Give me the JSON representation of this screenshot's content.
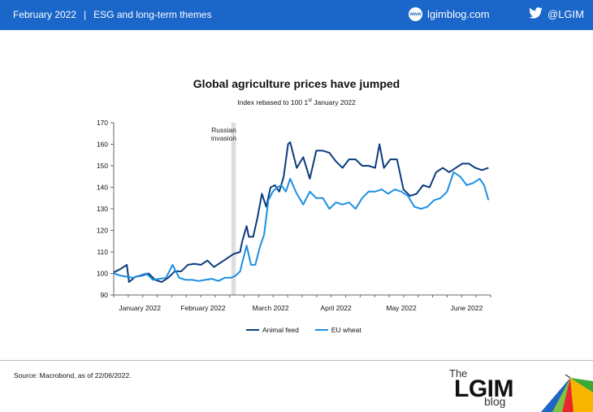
{
  "header": {
    "date": "February 2022",
    "separator": "|",
    "section": "ESG and long-term themes",
    "website": "lgimblog.com",
    "globe_badge": "www",
    "twitter": "@LGIM",
    "background": "#1a66c9"
  },
  "chart_data": {
    "type": "line",
    "title": "Global agriculture prices have jumped",
    "subtitle_prefix": "Index rebased to 100 1",
    "subtitle_sup": "st",
    "subtitle_suffix": " January 2022",
    "ylim": [
      90,
      170
    ],
    "yticks": [
      90,
      100,
      110,
      120,
      130,
      140,
      150,
      160,
      170
    ],
    "x_domain": [
      "2022-01-01",
      "2022-06-23"
    ],
    "xticks": [
      {
        "label": "January 2022",
        "date": "2022-01-13"
      },
      {
        "label": "February 2022",
        "date": "2022-02-11"
      },
      {
        "label": "March 2022",
        "date": "2022-03-14"
      },
      {
        "label": "April 2022",
        "date": "2022-04-13"
      },
      {
        "label": "May 2022",
        "date": "2022-05-13"
      },
      {
        "label": "June 2022",
        "date": "2022-06-12"
      }
    ],
    "annotation": {
      "text": [
        "Russian",
        "invasion"
      ],
      "date_from": "2022-02-24",
      "date_to": "2022-02-26"
    },
    "series": [
      {
        "name": "Animal feed",
        "color": "#0b3c7d",
        "x": [
          "2022-01-01",
          "2022-01-04",
          "2022-01-07",
          "2022-01-08",
          "2022-01-11",
          "2022-01-14",
          "2022-01-17",
          "2022-01-20",
          "2022-01-23",
          "2022-01-26",
          "2022-01-29",
          "2022-02-01",
          "2022-02-04",
          "2022-02-07",
          "2022-02-10",
          "2022-02-13",
          "2022-02-16",
          "2022-02-19",
          "2022-02-22",
          "2022-02-25",
          "2022-02-28",
          "2022-03-01",
          "2022-03-03",
          "2022-03-04",
          "2022-03-06",
          "2022-03-08",
          "2022-03-10",
          "2022-03-12",
          "2022-03-14",
          "2022-03-16",
          "2022-03-18",
          "2022-03-20",
          "2022-03-22",
          "2022-03-23",
          "2022-03-26",
          "2022-03-29",
          "2022-04-01",
          "2022-04-04",
          "2022-04-07",
          "2022-04-10",
          "2022-04-13",
          "2022-04-16",
          "2022-04-19",
          "2022-04-22",
          "2022-04-25",
          "2022-04-28",
          "2022-05-01",
          "2022-05-03",
          "2022-05-05",
          "2022-05-08",
          "2022-05-11",
          "2022-05-14",
          "2022-05-17",
          "2022-05-20",
          "2022-05-23",
          "2022-05-26",
          "2022-05-29",
          "2022-06-01",
          "2022-06-04",
          "2022-06-07",
          "2022-06-10",
          "2022-06-13",
          "2022-06-16",
          "2022-06-19",
          "2022-06-22"
        ],
        "y": [
          100.5,
          102,
          104,
          96,
          98.5,
          99,
          100,
          97,
          96,
          98,
          101,
          101,
          104,
          104.5,
          104,
          106,
          103,
          105,
          107,
          109,
          110,
          115,
          122,
          117,
          117,
          126,
          137,
          131,
          140,
          141,
          138,
          145,
          160,
          161,
          149,
          154,
          144,
          157,
          157,
          156,
          152,
          149,
          153,
          153,
          150,
          150,
          149,
          160,
          149,
          153,
          153,
          139,
          136,
          137,
          141,
          140,
          147,
          149,
          147,
          149,
          151,
          151,
          149,
          148,
          149
        ]
      },
      {
        "name": "EU wheat",
        "color": "#1c8fe2",
        "x": [
          "2022-01-01",
          "2022-01-04",
          "2022-01-07",
          "2022-01-10",
          "2022-01-13",
          "2022-01-16",
          "2022-01-19",
          "2022-01-22",
          "2022-01-25",
          "2022-01-28",
          "2022-01-31",
          "2022-02-03",
          "2022-02-06",
          "2022-02-09",
          "2022-02-12",
          "2022-02-15",
          "2022-02-18",
          "2022-02-21",
          "2022-02-24",
          "2022-02-26",
          "2022-02-28",
          "2022-03-01",
          "2022-03-03",
          "2022-03-05",
          "2022-03-07",
          "2022-03-09",
          "2022-03-11",
          "2022-03-13",
          "2022-03-15",
          "2022-03-17",
          "2022-03-19",
          "2022-03-21",
          "2022-03-23",
          "2022-03-26",
          "2022-03-29",
          "2022-04-01",
          "2022-04-04",
          "2022-04-07",
          "2022-04-10",
          "2022-04-13",
          "2022-04-16",
          "2022-04-19",
          "2022-04-22",
          "2022-04-25",
          "2022-04-28",
          "2022-05-01",
          "2022-05-04",
          "2022-05-07",
          "2022-05-10",
          "2022-05-13",
          "2022-05-16",
          "2022-05-19",
          "2022-05-22",
          "2022-05-25",
          "2022-05-28",
          "2022-05-31",
          "2022-06-03",
          "2022-06-06",
          "2022-06-09",
          "2022-06-12",
          "2022-06-15",
          "2022-06-18",
          "2022-06-20",
          "2022-06-22"
        ],
        "y": [
          100,
          99,
          98.5,
          98,
          99,
          100,
          97,
          97.5,
          98,
          104,
          98,
          97,
          97,
          96.5,
          97,
          97.5,
          96.5,
          98,
          98,
          99,
          101,
          105,
          113,
          104,
          104,
          112,
          118,
          134,
          138,
          140,
          141,
          138,
          144,
          137,
          132,
          138,
          135,
          135,
          130,
          133,
          132,
          133,
          130,
          135,
          138,
          138,
          139,
          137,
          139,
          138,
          136,
          131,
          130,
          131,
          134,
          135,
          138,
          147,
          145,
          141,
          142,
          144,
          141,
          134
        ]
      }
    ]
  },
  "legend": [
    {
      "label": "Animal feed",
      "color": "#0b3c7d"
    },
    {
      "label": "EU wheat",
      "color": "#1c8fe2"
    }
  ],
  "footer": {
    "source": "Source: Macrobond, as of 22/06/2022.",
    "brand_the": "The",
    "brand_lgim": "LGIM",
    "brand_blog": "blog"
  }
}
